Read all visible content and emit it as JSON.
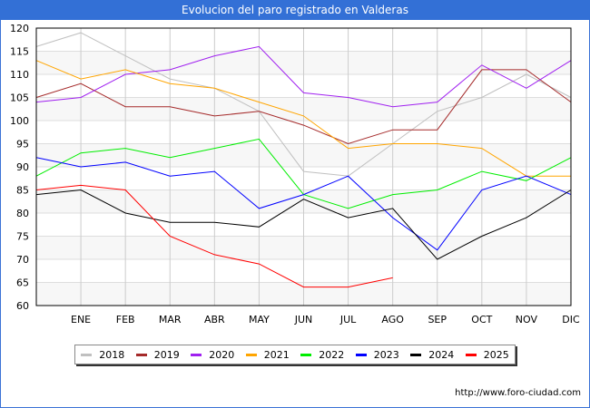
{
  "title": "Evolucion del paro registrado en Valderas",
  "footer_url": "http://www.foro-ciudad.com",
  "chart_data": {
    "type": "line",
    "title": "Evolucion del paro registrado en Valderas",
    "xlabel": "",
    "ylabel": "",
    "categories": [
      "",
      "ENE",
      "FEB",
      "MAR",
      "ABR",
      "MAY",
      "JUN",
      "JUL",
      "AGO",
      "SEP",
      "OCT",
      "NOV",
      "DIC"
    ],
    "ylim": [
      60,
      120
    ],
    "yticks": [
      60,
      65,
      70,
      75,
      80,
      85,
      90,
      95,
      100,
      105,
      110,
      115,
      120
    ],
    "grid": true,
    "legend_position": "bottom",
    "series": [
      {
        "name": "2018",
        "color": "#c0c0c0",
        "values": [
          116,
          119,
          114,
          109,
          107,
          102,
          89,
          88,
          95,
          102,
          105,
          110,
          105
        ]
      },
      {
        "name": "2019",
        "color": "#a52a2a",
        "values": [
          105,
          108,
          103,
          103,
          101,
          102,
          99,
          95,
          98,
          98,
          111,
          111,
          104
        ]
      },
      {
        "name": "2020",
        "color": "#a020f0",
        "values": [
          104,
          105,
          110,
          111,
          114,
          116,
          106,
          105,
          103,
          104,
          112,
          107,
          113
        ]
      },
      {
        "name": "2021",
        "color": "#ffa500",
        "values": [
          113,
          109,
          111,
          108,
          107,
          104,
          101,
          94,
          95,
          95,
          94,
          88,
          88
        ]
      },
      {
        "name": "2022",
        "color": "#00ee00",
        "values": [
          88,
          93,
          94,
          92,
          94,
          96,
          84,
          81,
          84,
          85,
          89,
          87,
          92
        ]
      },
      {
        "name": "2023",
        "color": "#0000ff",
        "values": [
          92,
          90,
          91,
          88,
          89,
          81,
          84,
          88,
          79,
          72,
          85,
          88,
          84
        ]
      },
      {
        "name": "2024",
        "color": "#000000",
        "values": [
          84,
          85,
          80,
          78,
          78,
          77,
          83,
          79,
          81,
          70,
          75,
          79,
          85
        ]
      },
      {
        "name": "2025",
        "color": "#ff0000",
        "values": [
          85,
          86,
          85,
          75,
          71,
          69,
          64,
          64,
          66
        ]
      }
    ]
  }
}
